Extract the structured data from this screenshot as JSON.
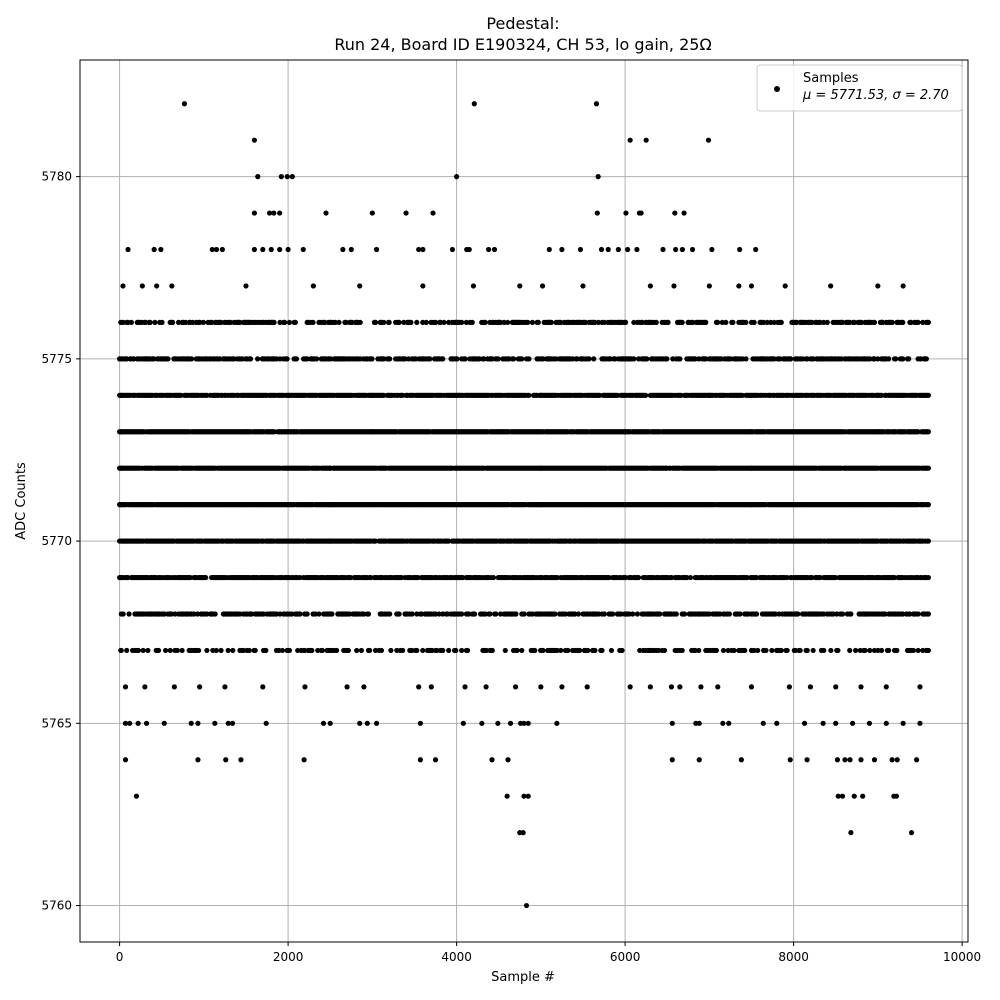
{
  "chart_data": {
    "type": "scatter",
    "title": "Pedestal:",
    "subtitle": "Run 24, Board ID E190324, CH 53, lo gain, 25Ω",
    "xlabel": "Sample #",
    "ylabel": "ADC Counts",
    "xlim": [
      -470,
      10070
    ],
    "ylim": [
      5759.0,
      5783.2
    ],
    "xticks": [
      0,
      2000,
      4000,
      6000,
      8000,
      10000
    ],
    "yticks": [
      5760,
      5765,
      5770,
      5775,
      5780
    ],
    "grid": true,
    "legend_position": "top-right",
    "marker_color": "#000000",
    "grid_color": "#b0b0b0",
    "series": [
      {
        "name": "Samples",
        "stats_label": "μ = 5771.53, σ = 2.70",
        "mean": 5771.53,
        "std": 2.7,
        "n_samples": 9600,
        "dense_levels": [
          5767,
          5768,
          5769,
          5770,
          5771,
          5772,
          5773,
          5774,
          5775,
          5776
        ],
        "points": [
          [
            770,
            5782
          ],
          [
            4210,
            5782
          ],
          [
            5660,
            5782
          ],
          [
            1600,
            5781
          ],
          [
            6060,
            5781
          ],
          [
            6250,
            5781
          ],
          [
            6990,
            5781
          ],
          [
            1640,
            5780
          ],
          [
            1920,
            5780
          ],
          [
            1990,
            5780
          ],
          [
            2050,
            5780
          ],
          [
            4000,
            5780
          ],
          [
            5680,
            5780
          ],
          [
            1600,
            5779
          ],
          [
            1780,
            5779
          ],
          [
            1830,
            5779
          ],
          [
            1900,
            5779
          ],
          [
            2450,
            5779
          ],
          [
            3000,
            5779
          ],
          [
            3400,
            5779
          ],
          [
            3720,
            5779
          ],
          [
            5670,
            5779
          ],
          [
            6010,
            5779
          ],
          [
            6170,
            5779
          ],
          [
            6190,
            5779
          ],
          [
            6590,
            5779
          ],
          [
            6700,
            5779
          ],
          [
            100,
            5778
          ],
          [
            410,
            5778
          ],
          [
            490,
            5778
          ],
          [
            1100,
            5778
          ],
          [
            1150,
            5778
          ],
          [
            1220,
            5778
          ],
          [
            1600,
            5778
          ],
          [
            1700,
            5778
          ],
          [
            1800,
            5778
          ],
          [
            1900,
            5778
          ],
          [
            2000,
            5778
          ],
          [
            2180,
            5778
          ],
          [
            2650,
            5778
          ],
          [
            2750,
            5778
          ],
          [
            3050,
            5778
          ],
          [
            3550,
            5778
          ],
          [
            3600,
            5778
          ],
          [
            3950,
            5778
          ],
          [
            4120,
            5778
          ],
          [
            4150,
            5778
          ],
          [
            4380,
            5778
          ],
          [
            4450,
            5778
          ],
          [
            5100,
            5778
          ],
          [
            5250,
            5778
          ],
          [
            5470,
            5778
          ],
          [
            5720,
            5778
          ],
          [
            5800,
            5778
          ],
          [
            5920,
            5778
          ],
          [
            6030,
            5778
          ],
          [
            6140,
            5778
          ],
          [
            6450,
            5778
          ],
          [
            6600,
            5778
          ],
          [
            6680,
            5778
          ],
          [
            6800,
            5778
          ],
          [
            7030,
            5778
          ],
          [
            7360,
            5778
          ],
          [
            7550,
            5778
          ],
          [
            40,
            5777
          ],
          [
            270,
            5777
          ],
          [
            440,
            5777
          ],
          [
            620,
            5777
          ],
          [
            1500,
            5777
          ],
          [
            2300,
            5777
          ],
          [
            2850,
            5777
          ],
          [
            3600,
            5777
          ],
          [
            4200,
            5777
          ],
          [
            4750,
            5777
          ],
          [
            5020,
            5777
          ],
          [
            5500,
            5777
          ],
          [
            6300,
            5777
          ],
          [
            6580,
            5777
          ],
          [
            7000,
            5777
          ],
          [
            7350,
            5777
          ],
          [
            7500,
            5777
          ],
          [
            7900,
            5777
          ],
          [
            8440,
            5777
          ],
          [
            9000,
            5777
          ],
          [
            9300,
            5777
          ],
          [
            100,
            5776
          ],
          [
            300,
            5776
          ],
          [
            600,
            5776
          ],
          [
            1300,
            5776
          ],
          [
            1800,
            5776
          ],
          [
            2500,
            5776
          ],
          [
            3200,
            5776
          ],
          [
            3800,
            5776
          ],
          [
            4500,
            5776
          ],
          [
            5100,
            5776
          ],
          [
            5600,
            5776
          ],
          [
            6200,
            5776
          ],
          [
            6900,
            5776
          ],
          [
            7500,
            5776
          ],
          [
            8000,
            5776
          ],
          [
            8400,
            5776
          ],
          [
            9050,
            5776
          ],
          [
            9600,
            5776
          ],
          [
            20,
            5775
          ],
          [
            300,
            5775
          ],
          [
            800,
            5775
          ],
          [
            1700,
            5775
          ],
          [
            2600,
            5775
          ],
          [
            3500,
            5775
          ],
          [
            4400,
            5775
          ],
          [
            5300,
            5775
          ],
          [
            6200,
            5775
          ],
          [
            7100,
            5775
          ],
          [
            7900,
            5775
          ],
          [
            8450,
            5775
          ],
          [
            9000,
            5775
          ],
          [
            9550,
            5775
          ],
          [
            20,
            5774
          ],
          [
            1000,
            5774
          ],
          [
            2000,
            5774
          ],
          [
            3000,
            5774
          ],
          [
            4000,
            5774
          ],
          [
            5000,
            5774
          ],
          [
            6000,
            5774
          ],
          [
            7000,
            5774
          ],
          [
            8000,
            5774
          ],
          [
            9000,
            5774
          ],
          [
            9600,
            5774
          ],
          [
            20,
            5773
          ],
          [
            1500,
            5773
          ],
          [
            3000,
            5773
          ],
          [
            4500,
            5773
          ],
          [
            6000,
            5773
          ],
          [
            7500,
            5773
          ],
          [
            9000,
            5773
          ],
          [
            9600,
            5773
          ],
          [
            20,
            5772
          ],
          [
            2500,
            5772
          ],
          [
            5000,
            5772
          ],
          [
            7500,
            5772
          ],
          [
            9600,
            5772
          ],
          [
            20,
            5771
          ],
          [
            2500,
            5771
          ],
          [
            5000,
            5771
          ],
          [
            7500,
            5771
          ],
          [
            9600,
            5771
          ],
          [
            20,
            5770
          ],
          [
            2500,
            5770
          ],
          [
            5000,
            5770
          ],
          [
            7500,
            5770
          ],
          [
            9600,
            5770
          ],
          [
            20,
            5769
          ],
          [
            2500,
            5769
          ],
          [
            5000,
            5769
          ],
          [
            7500,
            5769
          ],
          [
            9600,
            5769
          ],
          [
            20,
            5768
          ],
          [
            2500,
            5768
          ],
          [
            5000,
            5768
          ],
          [
            7500,
            5768
          ],
          [
            9600,
            5768
          ],
          [
            20,
            5767
          ],
          [
            2500,
            5767
          ],
          [
            5000,
            5767
          ],
          [
            7500,
            5767
          ],
          [
            9600,
            5767
          ],
          [
            70,
            5766
          ],
          [
            300,
            5766
          ],
          [
            650,
            5766
          ],
          [
            950,
            5766
          ],
          [
            1250,
            5766
          ],
          [
            1700,
            5766
          ],
          [
            2200,
            5766
          ],
          [
            2700,
            5766
          ],
          [
            2900,
            5766
          ],
          [
            3550,
            5766
          ],
          [
            3700,
            5766
          ],
          [
            4100,
            5766
          ],
          [
            4350,
            5766
          ],
          [
            4700,
            5766
          ],
          [
            5000,
            5766
          ],
          [
            5250,
            5766
          ],
          [
            5550,
            5766
          ],
          [
            6060,
            5766
          ],
          [
            6300,
            5766
          ],
          [
            6550,
            5766
          ],
          [
            6650,
            5766
          ],
          [
            6900,
            5766
          ],
          [
            7100,
            5766
          ],
          [
            7500,
            5766
          ],
          [
            7950,
            5766
          ],
          [
            8200,
            5766
          ],
          [
            8500,
            5766
          ],
          [
            8800,
            5766
          ],
          [
            9100,
            5766
          ],
          [
            9500,
            5766
          ],
          [
            70,
            5765
          ],
          [
            120,
            5765
          ],
          [
            220,
            5765
          ],
          [
            320,
            5765
          ],
          [
            530,
            5765
          ],
          [
            850,
            5765
          ],
          [
            930,
            5765
          ],
          [
            1130,
            5765
          ],
          [
            1290,
            5765
          ],
          [
            1340,
            5765
          ],
          [
            1740,
            5765
          ],
          [
            2420,
            5765
          ],
          [
            2500,
            5765
          ],
          [
            2850,
            5765
          ],
          [
            2940,
            5765
          ],
          [
            3050,
            5765
          ],
          [
            3570,
            5765
          ],
          [
            4080,
            5765
          ],
          [
            4300,
            5765
          ],
          [
            4490,
            5765
          ],
          [
            4640,
            5765
          ],
          [
            4760,
            5765
          ],
          [
            4800,
            5765
          ],
          [
            4850,
            5765
          ],
          [
            5190,
            5765
          ],
          [
            6560,
            5765
          ],
          [
            6840,
            5765
          ],
          [
            6880,
            5765
          ],
          [
            7160,
            5765
          ],
          [
            7230,
            5765
          ],
          [
            7640,
            5765
          ],
          [
            7800,
            5765
          ],
          [
            8130,
            5765
          ],
          [
            8350,
            5765
          ],
          [
            8500,
            5765
          ],
          [
            8700,
            5765
          ],
          [
            8900,
            5765
          ],
          [
            9100,
            5765
          ],
          [
            9300,
            5765
          ],
          [
            9500,
            5765
          ],
          [
            70,
            5764
          ],
          [
            930,
            5764
          ],
          [
            1260,
            5764
          ],
          [
            1440,
            5764
          ],
          [
            2190,
            5764
          ],
          [
            3570,
            5764
          ],
          [
            3750,
            5764
          ],
          [
            4420,
            5764
          ],
          [
            4610,
            5764
          ],
          [
            6560,
            5764
          ],
          [
            6880,
            5764
          ],
          [
            7380,
            5764
          ],
          [
            7960,
            5764
          ],
          [
            8160,
            5764
          ],
          [
            8520,
            5764
          ],
          [
            8610,
            5764
          ],
          [
            8670,
            5764
          ],
          [
            8800,
            5764
          ],
          [
            8960,
            5764
          ],
          [
            9170,
            5764
          ],
          [
            9230,
            5764
          ],
          [
            9460,
            5764
          ],
          [
            200,
            5763
          ],
          [
            4600,
            5763
          ],
          [
            4800,
            5763
          ],
          [
            4850,
            5763
          ],
          [
            8530,
            5763
          ],
          [
            8580,
            5763
          ],
          [
            8720,
            5763
          ],
          [
            8820,
            5763
          ],
          [
            9190,
            5763
          ],
          [
            9220,
            5763
          ],
          [
            4750,
            5762
          ],
          [
            4790,
            5762
          ],
          [
            8680,
            5762
          ],
          [
            9400,
            5762
          ],
          [
            4830,
            5760
          ]
        ]
      }
    ]
  }
}
